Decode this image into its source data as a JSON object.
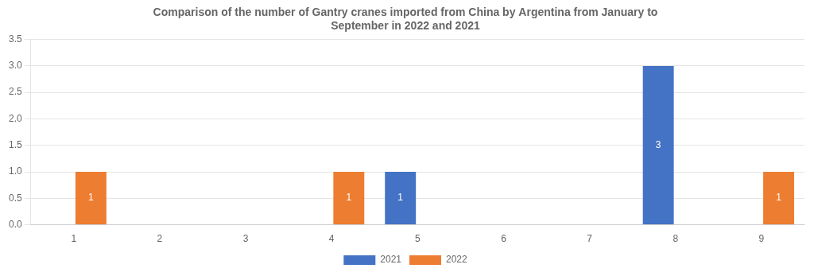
{
  "chart_data": {
    "type": "bar",
    "title": "Comparison of the number of Gantry cranes imported from China by Argentina from January to\nSeptember in 2022 and 2021",
    "categories": [
      "1",
      "2",
      "3",
      "4",
      "5",
      "6",
      "7",
      "8",
      "9"
    ],
    "series": [
      {
        "name": "2021",
        "color": "#4472C4",
        "values": [
          0,
          0,
          0,
          0,
          1,
          0,
          0,
          3,
          0
        ]
      },
      {
        "name": "2022",
        "color": "#ED7D31",
        "values": [
          1,
          0,
          0,
          1,
          0,
          0,
          0,
          0,
          1
        ]
      }
    ],
    "ylim": [
      0,
      3.5
    ],
    "yticks": [
      {
        "value": 0,
        "label": "0.0"
      },
      0.5,
      {
        "value": 1,
        "label": "1.0"
      },
      1.5,
      {
        "value": 2,
        "label": "2.0"
      },
      2.5,
      {
        "value": 3,
        "label": "3.0"
      },
      3.5
    ],
    "grid": true,
    "legend": "bottom",
    "data_labels": true
  }
}
